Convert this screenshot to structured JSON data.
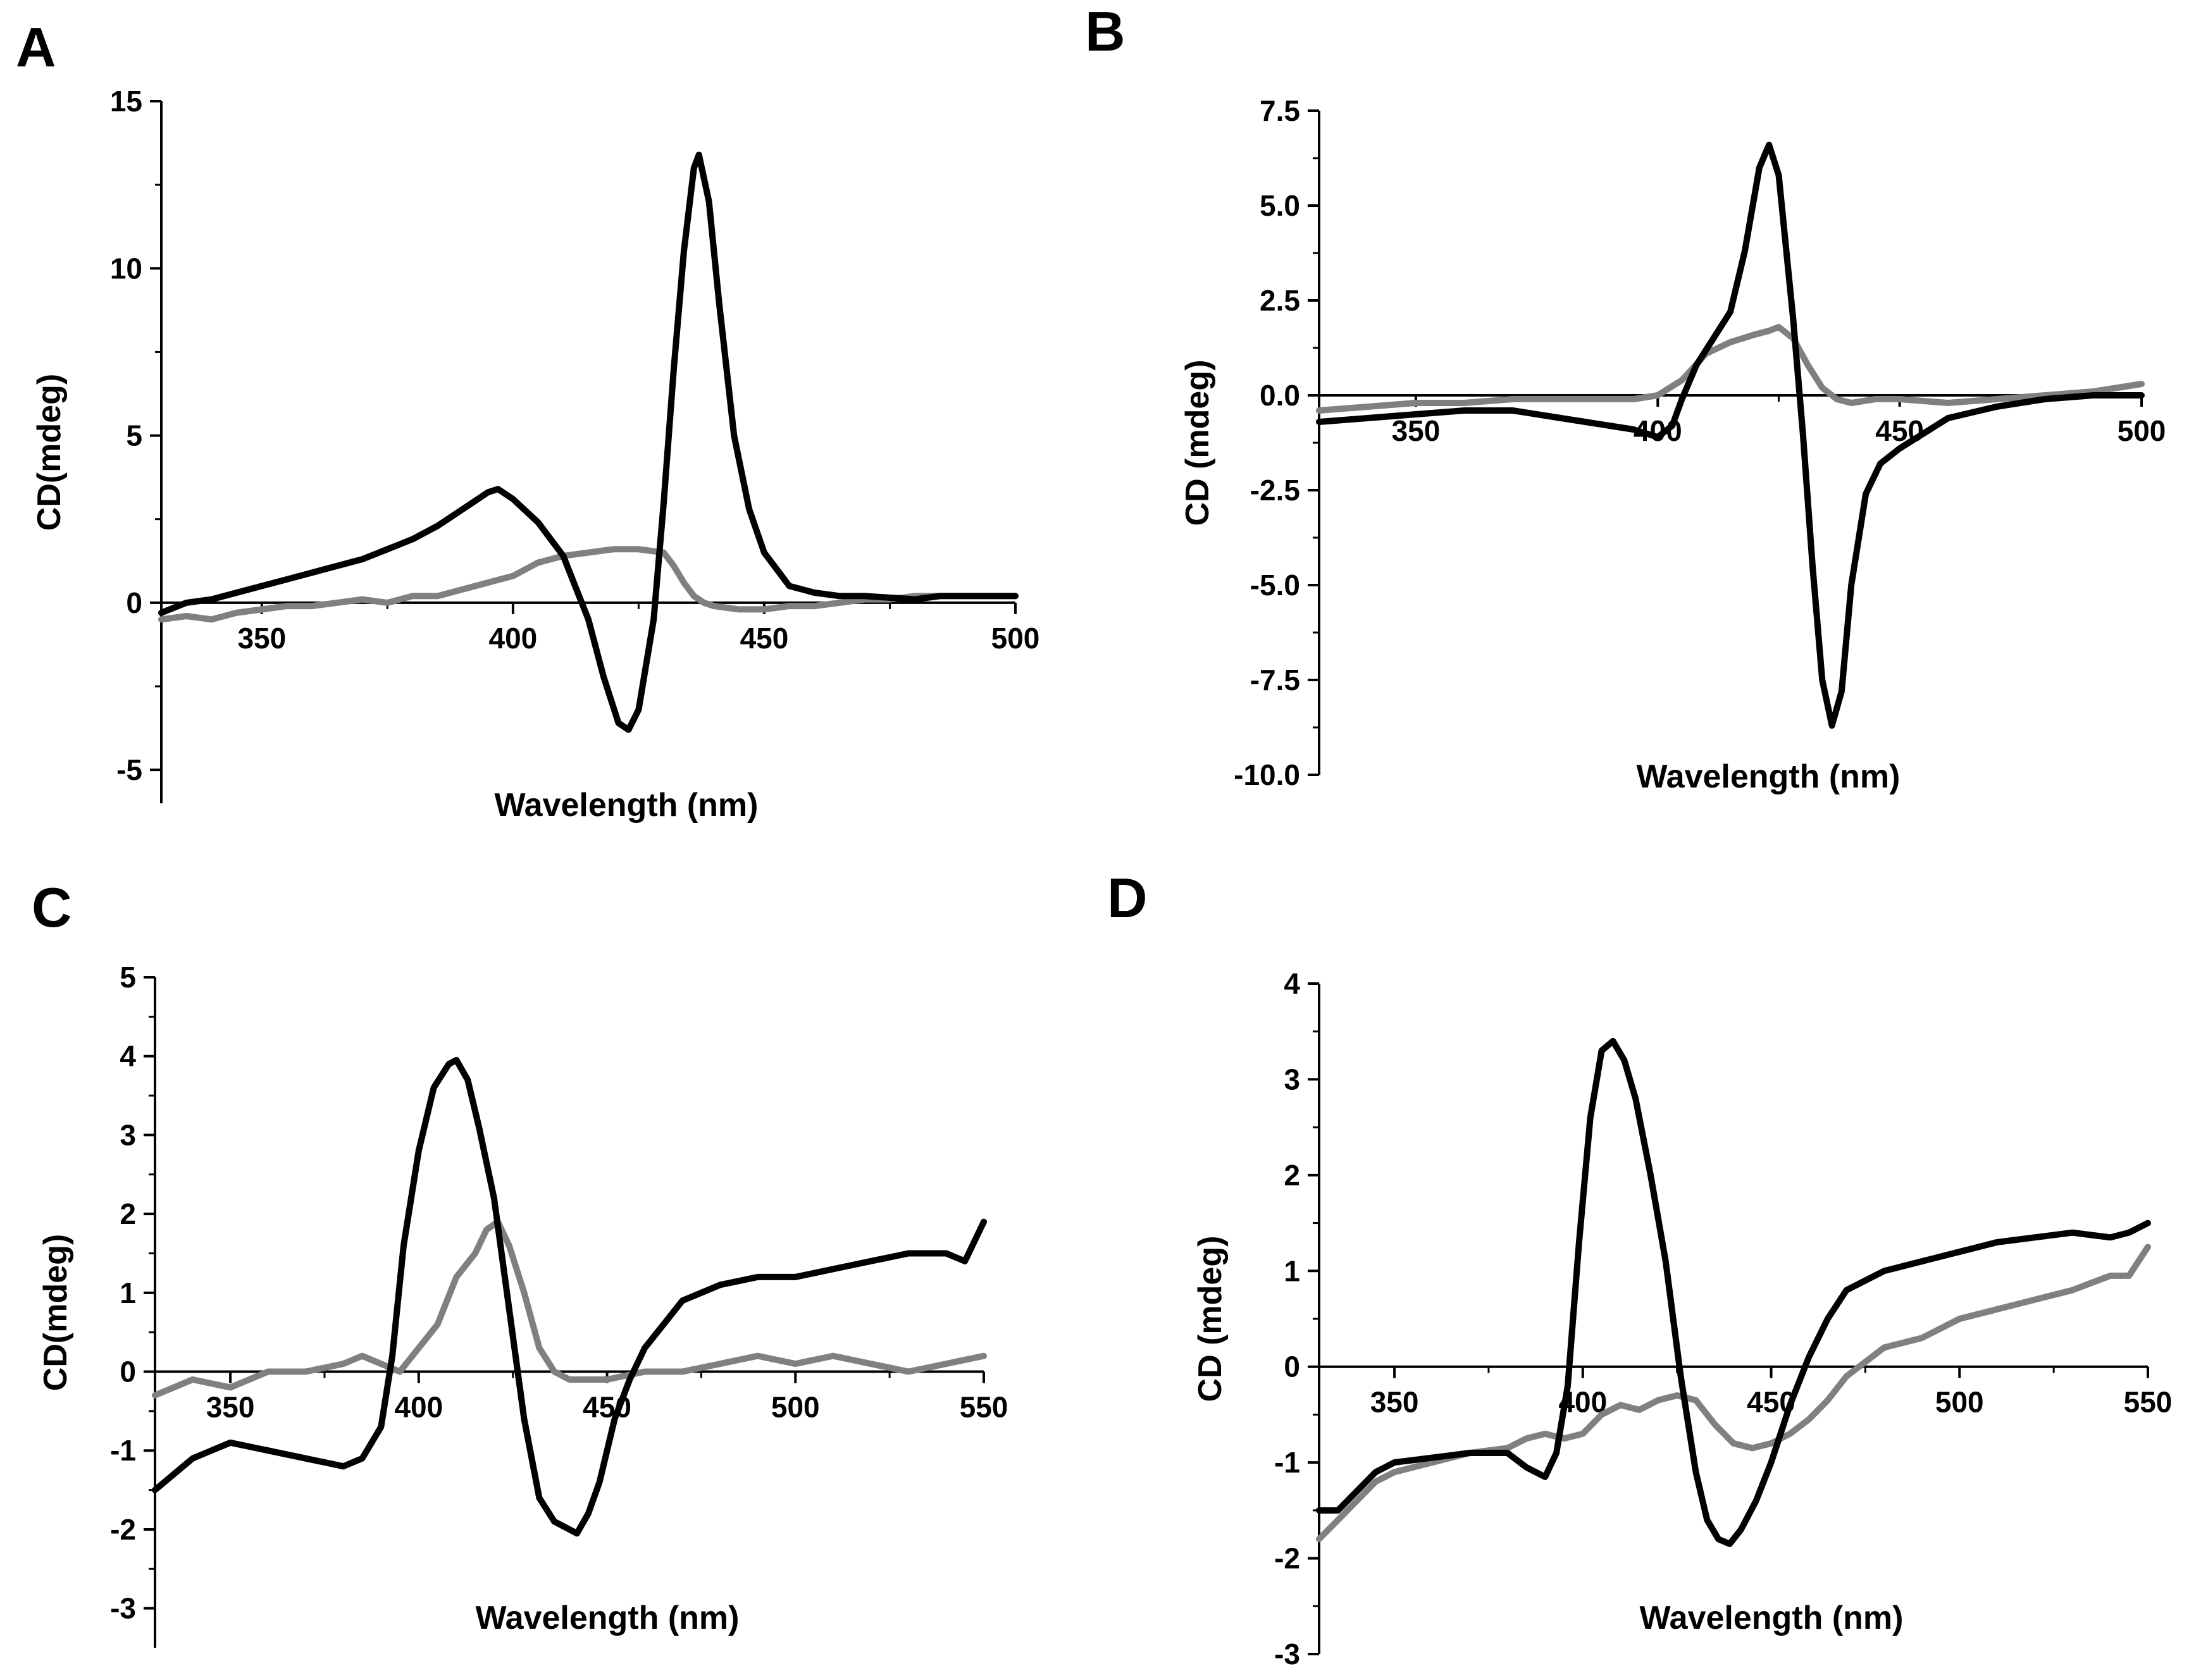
{
  "figure": {
    "panels": [
      "A",
      "B",
      "C",
      "D"
    ],
    "colors": {
      "series_1": "#000000",
      "series_2": "#808080",
      "axis": "#000000"
    }
  },
  "chart_data": [
    {
      "panel": "A",
      "type": "line",
      "title": "",
      "xlabel": "Wavelength (nm)",
      "ylabel": "CD(mdeg)",
      "xlim": [
        330,
        500
      ],
      "ylim": [
        -6,
        15
      ],
      "xticks": [
        350,
        400,
        450,
        500
      ],
      "yticks": [
        -5,
        0,
        5,
        10,
        15
      ],
      "xtick_labels": [
        "350",
        "400",
        "450",
        "500"
      ],
      "ytick_labels": [
        "-5",
        "0",
        "5",
        "10",
        "15"
      ],
      "zero_line": true,
      "series": [
        {
          "name": "black",
          "color": "#000000",
          "x": [
            330,
            335,
            340,
            345,
            350,
            355,
            360,
            365,
            370,
            375,
            380,
            385,
            390,
            395,
            397,
            400,
            405,
            410,
            415,
            418,
            421,
            423,
            425,
            428,
            430,
            432,
            434,
            436,
            437,
            439,
            441,
            444,
            447,
            450,
            455,
            460,
            465,
            470,
            475,
            480,
            485,
            490,
            495,
            500
          ],
          "y": [
            -0.3,
            0.0,
            0.1,
            0.3,
            0.5,
            0.7,
            0.9,
            1.1,
            1.3,
            1.6,
            1.9,
            2.3,
            2.8,
            3.3,
            3.4,
            3.1,
            2.4,
            1.4,
            -0.5,
            -2.2,
            -3.6,
            -3.8,
            -3.2,
            -0.5,
            3.0,
            7.0,
            10.5,
            13.0,
            13.4,
            12.0,
            9.0,
            5.0,
            2.8,
            1.5,
            0.5,
            0.3,
            0.2,
            0.2,
            0.15,
            0.1,
            0.2,
            0.2,
            0.2,
            0.2
          ]
        },
        {
          "name": "gray",
          "color": "#808080",
          "x": [
            330,
            335,
            340,
            345,
            350,
            355,
            360,
            365,
            370,
            375,
            380,
            385,
            390,
            395,
            400,
            405,
            410,
            415,
            420,
            425,
            430,
            432,
            434,
            436,
            438,
            440,
            445,
            450,
            455,
            460,
            465,
            470,
            475,
            480,
            485,
            490,
            495,
            500
          ],
          "y": [
            -0.5,
            -0.4,
            -0.5,
            -0.3,
            -0.2,
            -0.1,
            -0.1,
            0.0,
            0.1,
            0.0,
            0.2,
            0.2,
            0.4,
            0.6,
            0.8,
            1.2,
            1.4,
            1.5,
            1.6,
            1.6,
            1.5,
            1.1,
            0.6,
            0.2,
            0.0,
            -0.1,
            -0.2,
            -0.2,
            -0.1,
            -0.1,
            0.0,
            0.1,
            0.1,
            0.2,
            0.2,
            0.2,
            0.2,
            0.2
          ]
        }
      ]
    },
    {
      "panel": "B",
      "type": "line",
      "title": "",
      "xlabel": "Wavelength (nm)",
      "ylabel": "CD (mdeg)",
      "xlim": [
        330,
        500
      ],
      "ylim": [
        -10,
        7.5
      ],
      "xticks": [
        350,
        400,
        450,
        500
      ],
      "yticks": [
        -10,
        -7.5,
        -5,
        -2.5,
        0,
        2.5,
        5,
        7.5
      ],
      "xtick_labels": [
        "350",
        "400",
        "450",
        "500"
      ],
      "ytick_labels": [
        "-10.0",
        "-7.5",
        "-5.0",
        "-2.5",
        "0.0",
        "2.5",
        "5.0",
        "7.5"
      ],
      "zero_line": true,
      "series": [
        {
          "name": "black",
          "color": "#000000",
          "x": [
            330,
            340,
            350,
            360,
            370,
            380,
            390,
            395,
            400,
            403,
            405,
            408,
            412,
            415,
            418,
            421,
            423,
            425,
            428,
            430,
            432,
            434,
            436,
            438,
            440,
            443,
            446,
            450,
            455,
            460,
            470,
            480,
            490,
            500
          ],
          "y": [
            -0.7,
            -0.6,
            -0.5,
            -0.4,
            -0.4,
            -0.6,
            -0.8,
            -0.9,
            -1.1,
            -0.8,
            -0.1,
            0.8,
            1.6,
            2.2,
            3.8,
            6.0,
            6.6,
            5.8,
            2.0,
            -1.0,
            -4.5,
            -7.5,
            -8.7,
            -7.8,
            -5.0,
            -2.6,
            -1.8,
            -1.4,
            -1.0,
            -0.6,
            -0.3,
            -0.1,
            0.0,
            0.0
          ]
        },
        {
          "name": "gray",
          "color": "#808080",
          "x": [
            330,
            340,
            350,
            360,
            370,
            380,
            390,
            395,
            400,
            405,
            410,
            415,
            420,
            423,
            425,
            428,
            431,
            434,
            437,
            440,
            445,
            450,
            460,
            470,
            480,
            490,
            500
          ],
          "y": [
            -0.4,
            -0.3,
            -0.2,
            -0.2,
            -0.1,
            -0.1,
            -0.1,
            -0.1,
            0.0,
            0.4,
            1.1,
            1.4,
            1.6,
            1.7,
            1.8,
            1.5,
            0.8,
            0.2,
            -0.1,
            -0.2,
            -0.1,
            -0.1,
            -0.2,
            -0.1,
            0.0,
            0.1,
            0.3
          ]
        }
      ]
    },
    {
      "panel": "C",
      "type": "line",
      "title": "",
      "xlabel": "Wavelength (nm)",
      "ylabel": "CD(mdeg)",
      "xlim": [
        330,
        550
      ],
      "ylim": [
        -3.5,
        5
      ],
      "xticks": [
        350,
        400,
        450,
        500,
        550
      ],
      "yticks": [
        -3,
        -2,
        -1,
        0,
        1,
        2,
        3,
        4,
        5
      ],
      "xtick_labels": [
        "350",
        "400",
        "450",
        "500",
        "550"
      ],
      "ytick_labels": [
        "-3",
        "-2",
        "-1",
        "0",
        "1",
        "2",
        "3",
        "4",
        "5"
      ],
      "zero_line": true,
      "series": [
        {
          "name": "black",
          "color": "#000000",
          "x": [
            330,
            335,
            340,
            345,
            350,
            360,
            370,
            380,
            385,
            390,
            393,
            396,
            400,
            404,
            408,
            410,
            413,
            416,
            420,
            424,
            428,
            432,
            436,
            440,
            442,
            445,
            448,
            452,
            456,
            460,
            465,
            470,
            480,
            490,
            500,
            510,
            520,
            530,
            540,
            545,
            550
          ],
          "y": [
            -1.5,
            -1.3,
            -1.1,
            -1.0,
            -0.9,
            -1.0,
            -1.1,
            -1.2,
            -1.1,
            -0.7,
            0.2,
            1.6,
            2.8,
            3.6,
            3.9,
            3.95,
            3.7,
            3.1,
            2.2,
            0.8,
            -0.6,
            -1.6,
            -1.9,
            -2.0,
            -2.05,
            -1.8,
            -1.4,
            -0.6,
            -0.1,
            0.3,
            0.6,
            0.9,
            1.1,
            1.2,
            1.2,
            1.3,
            1.4,
            1.5,
            1.5,
            1.4,
            1.9
          ]
        },
        {
          "name": "gray",
          "color": "#808080",
          "x": [
            330,
            340,
            350,
            360,
            370,
            380,
            385,
            390,
            395,
            400,
            405,
            410,
            415,
            418,
            421,
            424,
            428,
            432,
            436,
            440,
            450,
            460,
            470,
            480,
            490,
            500,
            510,
            520,
            530,
            540,
            550
          ],
          "y": [
            -0.3,
            -0.1,
            -0.2,
            0.0,
            0.0,
            0.1,
            0.2,
            0.1,
            0.0,
            0.3,
            0.6,
            1.2,
            1.5,
            1.8,
            1.9,
            1.6,
            1.0,
            0.3,
            0.0,
            -0.1,
            -0.1,
            0.0,
            0.0,
            0.1,
            0.2,
            0.1,
            0.2,
            0.1,
            0.0,
            0.1,
            0.2
          ]
        }
      ]
    },
    {
      "panel": "D",
      "type": "line",
      "title": "",
      "xlabel": "Wavelength (nm)",
      "ylabel": "CD (mdeg)",
      "xlim": [
        330,
        550
      ],
      "ylim": [
        -3,
        4
      ],
      "xticks": [
        350,
        400,
        450,
        500,
        550
      ],
      "yticks": [
        -3,
        -2,
        -1,
        0,
        1,
        2,
        3,
        4
      ],
      "xtick_labels": [
        "350",
        "400",
        "450",
        "500",
        "550"
      ],
      "ytick_labels": [
        "-3",
        "-2",
        "-1",
        "0",
        "1",
        "2",
        "3",
        "4"
      ],
      "zero_line": true,
      "series": [
        {
          "name": "black",
          "color": "#000000",
          "x": [
            330,
            335,
            340,
            345,
            350,
            360,
            370,
            380,
            385,
            390,
            393,
            396,
            399,
            402,
            405,
            408,
            411,
            414,
            418,
            422,
            426,
            430,
            433,
            436,
            439,
            442,
            446,
            450,
            455,
            460,
            465,
            470,
            480,
            490,
            500,
            510,
            520,
            530,
            540,
            545,
            550
          ],
          "y": [
            -1.5,
            -1.5,
            -1.3,
            -1.1,
            -1.0,
            -0.95,
            -0.9,
            -0.9,
            -1.05,
            -1.15,
            -0.9,
            -0.2,
            1.3,
            2.6,
            3.3,
            3.4,
            3.2,
            2.8,
            2.0,
            1.1,
            -0.1,
            -1.1,
            -1.6,
            -1.8,
            -1.85,
            -1.7,
            -1.4,
            -1.0,
            -0.4,
            0.1,
            0.5,
            0.8,
            1.0,
            1.1,
            1.2,
            1.3,
            1.35,
            1.4,
            1.35,
            1.4,
            1.5
          ]
        },
        {
          "name": "gray",
          "color": "#808080",
          "x": [
            330,
            335,
            340,
            345,
            350,
            360,
            370,
            380,
            385,
            390,
            395,
            400,
            405,
            410,
            415,
            420,
            425,
            430,
            435,
            440,
            445,
            450,
            455,
            460,
            465,
            470,
            480,
            490,
            500,
            510,
            520,
            530,
            540,
            545,
            550
          ],
          "y": [
            -1.8,
            -1.6,
            -1.4,
            -1.2,
            -1.1,
            -1.0,
            -0.9,
            -0.85,
            -0.75,
            -0.7,
            -0.75,
            -0.7,
            -0.5,
            -0.4,
            -0.45,
            -0.35,
            -0.3,
            -0.35,
            -0.6,
            -0.8,
            -0.85,
            -0.8,
            -0.7,
            -0.55,
            -0.35,
            -0.1,
            0.2,
            0.3,
            0.5,
            0.6,
            0.7,
            0.8,
            0.95,
            0.95,
            1.25
          ]
        }
      ]
    }
  ]
}
